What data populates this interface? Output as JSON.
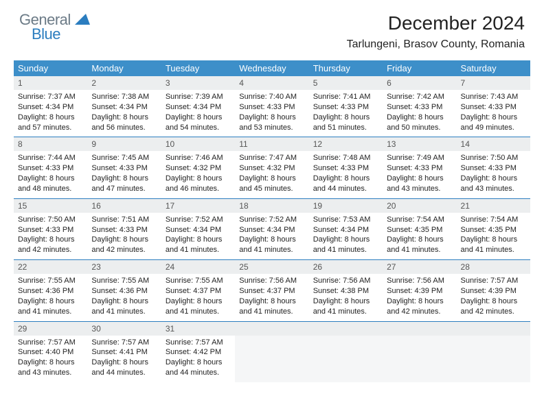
{
  "logo": {
    "text1": "General",
    "text2": "Blue",
    "color1": "#6b7a86",
    "color2": "#2b7dbf",
    "shape_color": "#2b7dbf"
  },
  "title": "December 2024",
  "location": "Tarlungeni, Brasov County, Romania",
  "header_bg": "#3d8fc9",
  "daynum_bg": "#eceeef",
  "border_color": "#2b7dbf",
  "days": [
    "Sunday",
    "Monday",
    "Tuesday",
    "Wednesday",
    "Thursday",
    "Friday",
    "Saturday"
  ],
  "weeks": [
    {
      "nums": [
        "1",
        "2",
        "3",
        "4",
        "5",
        "6",
        "7"
      ],
      "cells": [
        {
          "sunrise": "Sunrise: 7:37 AM",
          "sunset": "Sunset: 4:34 PM",
          "day1": "Daylight: 8 hours",
          "day2": "and 57 minutes."
        },
        {
          "sunrise": "Sunrise: 7:38 AM",
          "sunset": "Sunset: 4:34 PM",
          "day1": "Daylight: 8 hours",
          "day2": "and 56 minutes."
        },
        {
          "sunrise": "Sunrise: 7:39 AM",
          "sunset": "Sunset: 4:34 PM",
          "day1": "Daylight: 8 hours",
          "day2": "and 54 minutes."
        },
        {
          "sunrise": "Sunrise: 7:40 AM",
          "sunset": "Sunset: 4:33 PM",
          "day1": "Daylight: 8 hours",
          "day2": "and 53 minutes."
        },
        {
          "sunrise": "Sunrise: 7:41 AM",
          "sunset": "Sunset: 4:33 PM",
          "day1": "Daylight: 8 hours",
          "day2": "and 51 minutes."
        },
        {
          "sunrise": "Sunrise: 7:42 AM",
          "sunset": "Sunset: 4:33 PM",
          "day1": "Daylight: 8 hours",
          "day2": "and 50 minutes."
        },
        {
          "sunrise": "Sunrise: 7:43 AM",
          "sunset": "Sunset: 4:33 PM",
          "day1": "Daylight: 8 hours",
          "day2": "and 49 minutes."
        }
      ]
    },
    {
      "nums": [
        "8",
        "9",
        "10",
        "11",
        "12",
        "13",
        "14"
      ],
      "cells": [
        {
          "sunrise": "Sunrise: 7:44 AM",
          "sunset": "Sunset: 4:33 PM",
          "day1": "Daylight: 8 hours",
          "day2": "and 48 minutes."
        },
        {
          "sunrise": "Sunrise: 7:45 AM",
          "sunset": "Sunset: 4:33 PM",
          "day1": "Daylight: 8 hours",
          "day2": "and 47 minutes."
        },
        {
          "sunrise": "Sunrise: 7:46 AM",
          "sunset": "Sunset: 4:32 PM",
          "day1": "Daylight: 8 hours",
          "day2": "and 46 minutes."
        },
        {
          "sunrise": "Sunrise: 7:47 AM",
          "sunset": "Sunset: 4:32 PM",
          "day1": "Daylight: 8 hours",
          "day2": "and 45 minutes."
        },
        {
          "sunrise": "Sunrise: 7:48 AM",
          "sunset": "Sunset: 4:33 PM",
          "day1": "Daylight: 8 hours",
          "day2": "and 44 minutes."
        },
        {
          "sunrise": "Sunrise: 7:49 AM",
          "sunset": "Sunset: 4:33 PM",
          "day1": "Daylight: 8 hours",
          "day2": "and 43 minutes."
        },
        {
          "sunrise": "Sunrise: 7:50 AM",
          "sunset": "Sunset: 4:33 PM",
          "day1": "Daylight: 8 hours",
          "day2": "and 43 minutes."
        }
      ]
    },
    {
      "nums": [
        "15",
        "16",
        "17",
        "18",
        "19",
        "20",
        "21"
      ],
      "cells": [
        {
          "sunrise": "Sunrise: 7:50 AM",
          "sunset": "Sunset: 4:33 PM",
          "day1": "Daylight: 8 hours",
          "day2": "and 42 minutes."
        },
        {
          "sunrise": "Sunrise: 7:51 AM",
          "sunset": "Sunset: 4:33 PM",
          "day1": "Daylight: 8 hours",
          "day2": "and 42 minutes."
        },
        {
          "sunrise": "Sunrise: 7:52 AM",
          "sunset": "Sunset: 4:34 PM",
          "day1": "Daylight: 8 hours",
          "day2": "and 41 minutes."
        },
        {
          "sunrise": "Sunrise: 7:52 AM",
          "sunset": "Sunset: 4:34 PM",
          "day1": "Daylight: 8 hours",
          "day2": "and 41 minutes."
        },
        {
          "sunrise": "Sunrise: 7:53 AM",
          "sunset": "Sunset: 4:34 PM",
          "day1": "Daylight: 8 hours",
          "day2": "and 41 minutes."
        },
        {
          "sunrise": "Sunrise: 7:54 AM",
          "sunset": "Sunset: 4:35 PM",
          "day1": "Daylight: 8 hours",
          "day2": "and 41 minutes."
        },
        {
          "sunrise": "Sunrise: 7:54 AM",
          "sunset": "Sunset: 4:35 PM",
          "day1": "Daylight: 8 hours",
          "day2": "and 41 minutes."
        }
      ]
    },
    {
      "nums": [
        "22",
        "23",
        "24",
        "25",
        "26",
        "27",
        "28"
      ],
      "cells": [
        {
          "sunrise": "Sunrise: 7:55 AM",
          "sunset": "Sunset: 4:36 PM",
          "day1": "Daylight: 8 hours",
          "day2": "and 41 minutes."
        },
        {
          "sunrise": "Sunrise: 7:55 AM",
          "sunset": "Sunset: 4:36 PM",
          "day1": "Daylight: 8 hours",
          "day2": "and 41 minutes."
        },
        {
          "sunrise": "Sunrise: 7:55 AM",
          "sunset": "Sunset: 4:37 PM",
          "day1": "Daylight: 8 hours",
          "day2": "and 41 minutes."
        },
        {
          "sunrise": "Sunrise: 7:56 AM",
          "sunset": "Sunset: 4:37 PM",
          "day1": "Daylight: 8 hours",
          "day2": "and 41 minutes."
        },
        {
          "sunrise": "Sunrise: 7:56 AM",
          "sunset": "Sunset: 4:38 PM",
          "day1": "Daylight: 8 hours",
          "day2": "and 41 minutes."
        },
        {
          "sunrise": "Sunrise: 7:56 AM",
          "sunset": "Sunset: 4:39 PM",
          "day1": "Daylight: 8 hours",
          "day2": "and 42 minutes."
        },
        {
          "sunrise": "Sunrise: 7:57 AM",
          "sunset": "Sunset: 4:39 PM",
          "day1": "Daylight: 8 hours",
          "day2": "and 42 minutes."
        }
      ]
    },
    {
      "nums": [
        "29",
        "30",
        "31",
        "",
        "",
        "",
        ""
      ],
      "cells": [
        {
          "sunrise": "Sunrise: 7:57 AM",
          "sunset": "Sunset: 4:40 PM",
          "day1": "Daylight: 8 hours",
          "day2": "and 43 minutes."
        },
        {
          "sunrise": "Sunrise: 7:57 AM",
          "sunset": "Sunset: 4:41 PM",
          "day1": "Daylight: 8 hours",
          "day2": "and 44 minutes."
        },
        {
          "sunrise": "Sunrise: 7:57 AM",
          "sunset": "Sunset: 4:42 PM",
          "day1": "Daylight: 8 hours",
          "day2": "and 44 minutes."
        },
        null,
        null,
        null,
        null
      ]
    }
  ]
}
